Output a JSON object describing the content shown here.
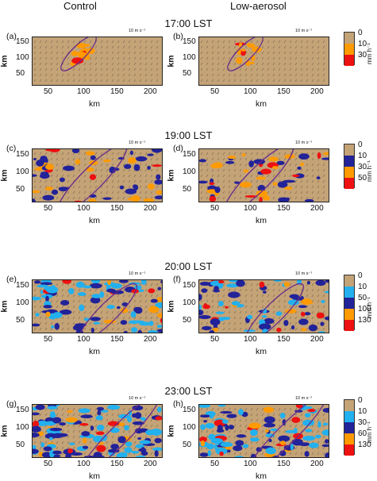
{
  "header": {
    "left": "Control",
    "right": "Low-aerosol"
  },
  "rows": [
    {
      "time": "17:00 LST",
      "panels": [
        "(a)",
        "(b)"
      ],
      "yticks": [
        "150",
        "100",
        "50"
      ],
      "xticks": [
        "50",
        "100",
        "150",
        "200"
      ],
      "scale": "10 m s⁻¹",
      "colorbar": {
        "labels": [
          "0",
          "10",
          "30"
        ],
        "colors": [
          "#c4a377",
          "#ff9a00",
          "#ee1111"
        ],
        "unit": "mm h⁻¹"
      }
    },
    {
      "time": "19:00 LST",
      "panels": [
        "(c)",
        "(d)"
      ],
      "yticks": [
        "150",
        "100",
        "50"
      ],
      "xticks": [
        "50",
        "100",
        "150",
        "200"
      ],
      "scale": "10 m s⁻¹",
      "colorbar": {
        "labels": [
          "0",
          "10",
          "30",
          "50"
        ],
        "colors": [
          "#c4a377",
          "#222299",
          "#ff9a00",
          "#ee1111"
        ],
        "unit": "mm h⁻¹"
      }
    },
    {
      "time": "20:00 LST",
      "panels": [
        "(e)",
        "(f)"
      ],
      "yticks": [
        "150",
        "100",
        "50"
      ],
      "xticks": [
        "50",
        "100",
        "150",
        "200"
      ],
      "scale": "10 m s⁻¹",
      "colorbar": {
        "labels": [
          "0",
          "10",
          "50",
          "100",
          "130"
        ],
        "colors": [
          "#c4a377",
          "#22b0ee",
          "#222299",
          "#ff9a00",
          "#ee1111"
        ],
        "unit": "mm h⁻¹"
      }
    },
    {
      "time": "23:00 LST",
      "panels": [
        "(g)",
        "(h)"
      ],
      "yticks": [
        "150",
        "100",
        "50"
      ],
      "xticks": [
        "50",
        "100",
        "150",
        "200"
      ],
      "scale": "10 m s⁻¹",
      "colorbar": {
        "labels": [
          "0",
          "10",
          "30",
          "60",
          "130"
        ],
        "colors": [
          "#c4a377",
          "#22b0ee",
          "#222299",
          "#ff9a00",
          "#ee1111"
        ],
        "unit": "mm h⁻¹"
      }
    }
  ],
  "axis": {
    "ylabel": "km",
    "xlabel": "km"
  }
}
